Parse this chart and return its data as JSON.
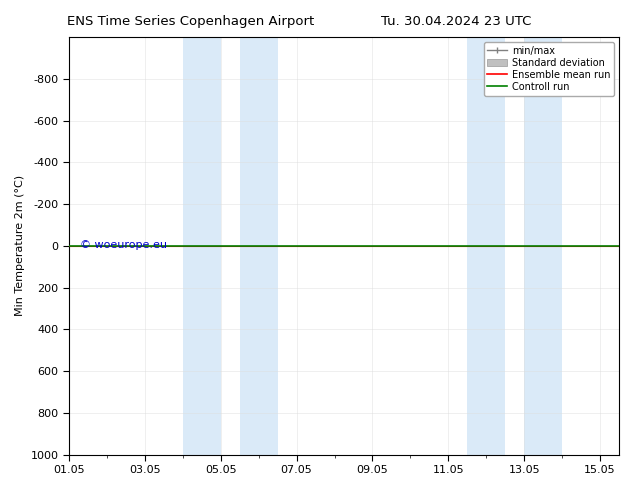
{
  "title_left": "ENS Time Series Copenhagen Airport",
  "title_right": "Tu. 30.04.2024 23 UTC",
  "ylabel": "Min Temperature 2m (°C)",
  "ylim": [
    -1000,
    1000
  ],
  "yticks": [
    -800,
    -600,
    -400,
    -200,
    0,
    200,
    400,
    600,
    800,
    1000
  ],
  "xtick_labels": [
    "01.05",
    "03.05",
    "05.05",
    "07.05",
    "09.05",
    "11.05",
    "13.05",
    "15.05"
  ],
  "xtick_positions": [
    0,
    2,
    4,
    6,
    8,
    10,
    12,
    14
  ],
  "shaded_regions": [
    [
      3.0,
      4.0
    ],
    [
      4.5,
      5.5
    ],
    [
      10.5,
      11.5
    ],
    [
      12.0,
      13.0
    ]
  ],
  "shaded_color": "#daeaf8",
  "ensemble_mean_color": "#ff0000",
  "control_run_color": "#008000",
  "line_y_value": 0,
  "min_max_color": "#808080",
  "std_dev_color": "#c0c0c0",
  "watermark": "© woeurope.eu",
  "watermark_color": "#0000cc",
  "legend_labels": [
    "min/max",
    "Standard deviation",
    "Ensemble mean run",
    "Controll run"
  ],
  "legend_colors": [
    "#808080",
    "#c0c0c0",
    "#ff0000",
    "#008000"
  ],
  "background_color": "#ffffff",
  "plot_bg_color": "#ffffff",
  "xlim": [
    0,
    14.5
  ],
  "grid_color": "#dddddd"
}
